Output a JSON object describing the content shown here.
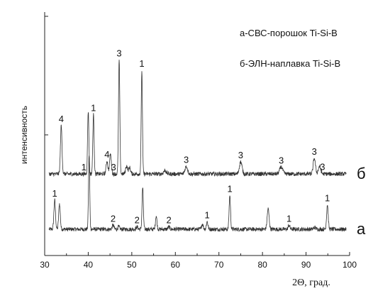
{
  "chart_data": {
    "type": "line",
    "xlabel": "2Θ, град.",
    "ylabel": "интенсивность",
    "xlim": [
      30,
      100
    ],
    "xticks": [
      "30",
      "40",
      "50",
      "60",
      "70",
      "80",
      "90",
      "100"
    ],
    "grid": false,
    "legend": [
      "а-СВС-порошок Ti-Si-B",
      "б-ЭЛН-наплавка Ti-Si-B"
    ],
    "series": [
      {
        "name": "а",
        "baseline": 0.0,
        "peaks": [
          {
            "x": 32.3,
            "h": 0.5,
            "w": 0.18
          },
          {
            "x": 33.4,
            "h": 0.44,
            "w": 0.18
          },
          {
            "x": 40.2,
            "h": 1.28,
            "w": 0.14
          },
          {
            "x": 45.7,
            "h": 0.07,
            "w": 0.2
          },
          {
            "x": 47.0,
            "h": 0.04,
            "w": 0.2
          },
          {
            "x": 51.2,
            "h": 0.04,
            "w": 0.2
          },
          {
            "x": 52.5,
            "h": 0.72,
            "w": 0.15
          },
          {
            "x": 55.6,
            "h": 0.23,
            "w": 0.17
          },
          {
            "x": 58.5,
            "h": 0.04,
            "w": 0.2
          },
          {
            "x": 66.2,
            "h": 0.09,
            "w": 0.2
          },
          {
            "x": 67.3,
            "h": 0.13,
            "w": 0.18
          },
          {
            "x": 72.5,
            "h": 0.58,
            "w": 0.16
          },
          {
            "x": 81.3,
            "h": 0.35,
            "w": 0.22
          },
          {
            "x": 86.1,
            "h": 0.07,
            "w": 0.2
          },
          {
            "x": 92.0,
            "h": 0.03,
            "w": 0.25
          },
          {
            "x": 94.9,
            "h": 0.42,
            "w": 0.18
          }
        ],
        "labels": [
          {
            "x": 32.3,
            "text": "1"
          },
          {
            "x": 45.7,
            "text": "2"
          },
          {
            "x": 51.2,
            "text": "2"
          },
          {
            "x": 58.5,
            "text": "2"
          },
          {
            "x": 67.3,
            "text": "1"
          },
          {
            "x": 72.5,
            "text": "1"
          },
          {
            "x": 86.1,
            "text": "1"
          },
          {
            "x": 94.9,
            "text": "1"
          }
        ],
        "end_label": "а"
      },
      {
        "name": "б",
        "baseline": 0.95,
        "peaks": [
          {
            "x": 33.8,
            "h": 0.83,
            "w": 0.18
          },
          {
            "x": 40.0,
            "h": 1.08,
            "w": 0.15
          },
          {
            "x": 41.2,
            "h": 1.02,
            "w": 0.15
          },
          {
            "x": 44.3,
            "h": 0.22,
            "w": 0.2
          },
          {
            "x": 45.1,
            "h": 0.34,
            "w": 0.2
          },
          {
            "x": 47.1,
            "h": 1.96,
            "w": 0.15
          },
          {
            "x": 48.8,
            "h": 0.14,
            "w": 0.22
          },
          {
            "x": 49.5,
            "h": 0.11,
            "w": 0.22
          },
          {
            "x": 52.3,
            "h": 1.78,
            "w": 0.14
          },
          {
            "x": 57.6,
            "h": 0.06,
            "w": 0.3
          },
          {
            "x": 62.5,
            "h": 0.13,
            "w": 0.3
          },
          {
            "x": 75.0,
            "h": 0.21,
            "w": 0.3
          },
          {
            "x": 84.3,
            "h": 0.12,
            "w": 0.35
          },
          {
            "x": 91.9,
            "h": 0.27,
            "w": 0.25
          },
          {
            "x": 93.1,
            "h": 0.13,
            "w": 0.28
          }
        ],
        "labels": [
          {
            "x": 33.8,
            "text": "4"
          },
          {
            "x": 39.0,
            "text": "1"
          },
          {
            "x": 41.2,
            "text": "1"
          },
          {
            "x": 44.3,
            "text": "4"
          },
          {
            "x": 45.8,
            "text": "3"
          },
          {
            "x": 47.1,
            "text": "3"
          },
          {
            "x": 52.3,
            "text": "1"
          },
          {
            "x": 62.5,
            "text": "3"
          },
          {
            "x": 75.0,
            "text": "3"
          },
          {
            "x": 84.3,
            "text": "3"
          },
          {
            "x": 91.9,
            "text": "3"
          },
          {
            "x": 93.8,
            "text": "3"
          }
        ],
        "end_label": "б"
      }
    ]
  }
}
